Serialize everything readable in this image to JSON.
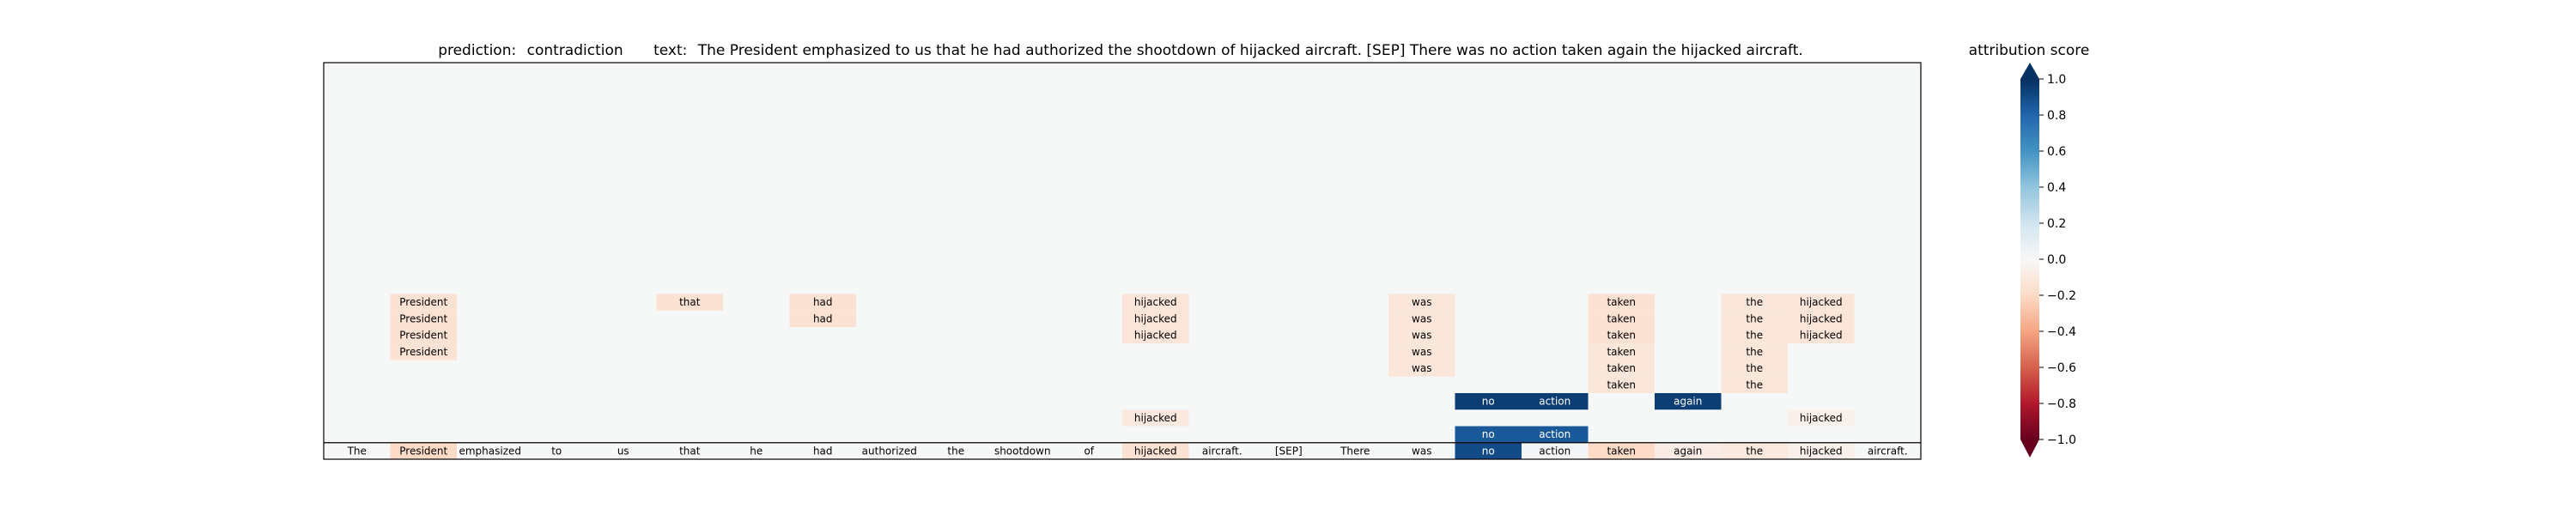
{
  "chart_data": {
    "type": "heatmap",
    "title": {
      "prediction_label": "prediction:",
      "prediction": "contradiction",
      "text_label": "text:",
      "text": "The President emphasized to us that he had authorized the shootdown of hijacked aircraft. [SEP] There was no action taken again the hijacked aircraft."
    },
    "tokens": [
      "The",
      "President",
      "emphasized",
      "to",
      "us",
      "that",
      "he",
      "had",
      "authorized",
      "the",
      "shootdown",
      "of",
      "hijacked",
      "aircraft.",
      "[SEP]",
      "There",
      "was",
      "no",
      "action",
      "taken",
      "again",
      "the",
      "hijacked",
      "aircraft."
    ],
    "layers": 24,
    "cells": [
      {
        "row": 0,
        "col": 0,
        "value": 0.0
      },
      {
        "row": 0,
        "col": 1,
        "value": -0.2
      },
      {
        "row": 0,
        "col": 12,
        "value": -0.15
      },
      {
        "row": 0,
        "col": 17,
        "value": 0.9
      },
      {
        "row": 0,
        "col": 18,
        "value": 0.02
      },
      {
        "row": 0,
        "col": 19,
        "value": -0.2
      },
      {
        "row": 0,
        "col": 20,
        "value": -0.08
      },
      {
        "row": 0,
        "col": 21,
        "value": -0.1
      },
      {
        "row": 0,
        "col": 22,
        "value": -0.05
      },
      {
        "row": 1,
        "col": 17,
        "value": 0.85
      },
      {
        "row": 1,
        "col": 18,
        "value": 0.85
      },
      {
        "row": 2,
        "col": 12,
        "value": -0.1
      },
      {
        "row": 2,
        "col": 22,
        "value": -0.05
      },
      {
        "row": 3,
        "col": 17,
        "value": 0.95
      },
      {
        "row": 3,
        "col": 18,
        "value": 0.95
      },
      {
        "row": 3,
        "col": 20,
        "value": 0.95
      },
      {
        "row": 4,
        "col": 19,
        "value": -0.12
      },
      {
        "row": 4,
        "col": 21,
        "value": -0.12
      },
      {
        "row": 5,
        "col": 16,
        "value": -0.12
      },
      {
        "row": 5,
        "col": 19,
        "value": -0.12
      },
      {
        "row": 5,
        "col": 21,
        "value": -0.12
      },
      {
        "row": 6,
        "col": 1,
        "value": -0.15
      },
      {
        "row": 6,
        "col": 16,
        "value": -0.12
      },
      {
        "row": 6,
        "col": 19,
        "value": -0.12
      },
      {
        "row": 6,
        "col": 21,
        "value": -0.12
      },
      {
        "row": 7,
        "col": 1,
        "value": -0.15
      },
      {
        "row": 7,
        "col": 12,
        "value": -0.13
      },
      {
        "row": 7,
        "col": 16,
        "value": -0.12
      },
      {
        "row": 7,
        "col": 19,
        "value": -0.15
      },
      {
        "row": 7,
        "col": 21,
        "value": -0.12
      },
      {
        "row": 7,
        "col": 22,
        "value": -0.13
      },
      {
        "row": 8,
        "col": 1,
        "value": -0.15
      },
      {
        "row": 8,
        "col": 7,
        "value": -0.15
      },
      {
        "row": 8,
        "col": 12,
        "value": -0.13
      },
      {
        "row": 8,
        "col": 16,
        "value": -0.12
      },
      {
        "row": 8,
        "col": 19,
        "value": -0.15
      },
      {
        "row": 8,
        "col": 21,
        "value": -0.12
      },
      {
        "row": 8,
        "col": 22,
        "value": -0.13
      },
      {
        "row": 9,
        "col": 1,
        "value": -0.15
      },
      {
        "row": 9,
        "col": 5,
        "value": -0.15
      },
      {
        "row": 9,
        "col": 7,
        "value": -0.15
      },
      {
        "row": 9,
        "col": 12,
        "value": -0.13
      },
      {
        "row": 9,
        "col": 16,
        "value": -0.12
      },
      {
        "row": 9,
        "col": 19,
        "value": -0.15
      },
      {
        "row": 9,
        "col": 21,
        "value": -0.12
      },
      {
        "row": 9,
        "col": 22,
        "value": -0.13
      }
    ],
    "colorbar": {
      "label": "attribution score",
      "range": [
        -1.0,
        1.0
      ],
      "ticks": [
        "1.0",
        "0.8",
        "0.6",
        "0.4",
        "0.2",
        "0.0",
        "−0.2",
        "−0.4",
        "−0.6",
        "−0.8",
        "−1.0"
      ],
      "tick_values": [
        1.0,
        0.8,
        0.6,
        0.4,
        0.2,
        0.0,
        -0.2,
        -0.4,
        -0.6,
        -0.8,
        -1.0
      ],
      "colormap": "RdBu"
    },
    "colors": {
      "background": "#f6f7f7",
      "neg_strong": "#67001f",
      "neutral": "#f7f7f7",
      "pos_strong": "#053061"
    }
  }
}
